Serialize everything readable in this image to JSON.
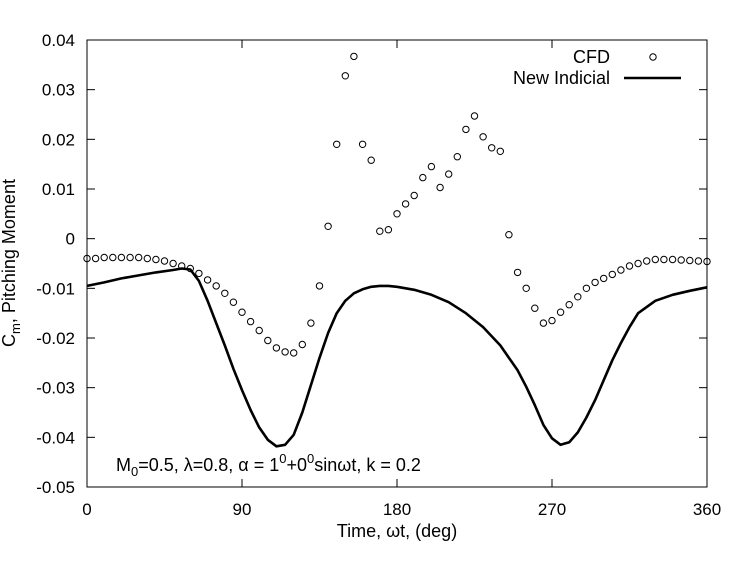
{
  "chart_data": {
    "type": "line",
    "title": "",
    "xlabel": "Time, ωt, (deg)",
    "ylabel_main": "C",
    "ylabel_sub": "m",
    "ylabel_rest": ", Pitching Moment",
    "xlim": [
      0,
      360
    ],
    "ylim": [
      -0.05,
      0.04
    ],
    "xticks": [
      0,
      90,
      180,
      270,
      360
    ],
    "xtick_labels": [
      "0",
      "90",
      "180",
      "270",
      "360"
    ],
    "yticks": [
      -0.05,
      -0.04,
      -0.03,
      -0.02,
      -0.01,
      0,
      0.01,
      0.02,
      0.03,
      0.04
    ],
    "ytick_labels": [
      "-0.05",
      "-0.04",
      "-0.03",
      "-0.02",
      "-0.01",
      "0",
      "0.01",
      "0.02",
      "0.03",
      "0.04"
    ],
    "grid": false,
    "legend_position": "top-right",
    "annotation": {
      "p1": "M",
      "p1_sub": "0",
      "p2": "=0.5, λ=0.8, α = 1",
      "p2_sup": "0",
      "p3": "+0",
      "p3_sup": "0",
      "p4": "sinωt, k = 0.2"
    },
    "series": [
      {
        "name": "CFD",
        "style": "markers",
        "marker": "open-circle",
        "color": "#000000",
        "x": [
          0,
          5,
          10,
          15,
          20,
          25,
          30,
          35,
          40,
          45,
          50,
          55,
          60,
          65,
          70,
          75,
          80,
          85,
          90,
          95,
          100,
          105,
          110,
          115,
          120,
          125,
          130,
          135,
          140,
          145,
          150,
          155,
          160,
          165,
          170,
          175,
          180,
          185,
          190,
          195,
          200,
          205,
          210,
          215,
          220,
          225,
          230,
          235,
          240,
          245,
          250,
          255,
          260,
          265,
          270,
          275,
          280,
          285,
          290,
          295,
          300,
          305,
          310,
          315,
          320,
          325,
          330,
          335,
          340,
          345,
          350,
          355,
          360
        ],
        "y": [
          -0.004,
          -0.004,
          -0.0038,
          -0.0038,
          -0.0038,
          -0.0038,
          -0.0038,
          -0.004,
          -0.0042,
          -0.0045,
          -0.005,
          -0.0055,
          -0.006,
          -0.007,
          -0.0083,
          -0.0095,
          -0.011,
          -0.0128,
          -0.0148,
          -0.0167,
          -0.0185,
          -0.0205,
          -0.022,
          -0.0228,
          -0.023,
          -0.0213,
          -0.017,
          -0.0095,
          0.0025,
          0.019,
          0.0328,
          0.0367,
          0.019,
          0.0158,
          0.0015,
          0.0018,
          0.005,
          0.007,
          0.0087,
          0.0123,
          0.0145,
          0.0103,
          0.013,
          0.0165,
          0.022,
          0.0247,
          0.0205,
          0.0183,
          0.0176,
          0.0008,
          -0.0068,
          -0.01,
          -0.014,
          -0.017,
          -0.0165,
          -0.0148,
          -0.0133,
          -0.0117,
          -0.01,
          -0.0088,
          -0.008,
          -0.0072,
          -0.0063,
          -0.0055,
          -0.005,
          -0.0045,
          -0.0042,
          -0.0042,
          -0.0042,
          -0.0043,
          -0.0044,
          -0.0045,
          -0.0046
        ]
      },
      {
        "name": "New Indicial",
        "style": "line",
        "color": "#000000",
        "x": [
          0,
          10,
          20,
          30,
          40,
          50,
          55,
          60,
          65,
          70,
          75,
          80,
          85,
          90,
          95,
          100,
          105,
          110,
          115,
          120,
          125,
          130,
          135,
          140,
          145,
          150,
          155,
          160,
          165,
          170,
          175,
          180,
          185,
          190,
          200,
          210,
          220,
          230,
          240,
          250,
          255,
          260,
          265,
          270,
          275,
          280,
          285,
          290,
          295,
          300,
          305,
          310,
          315,
          320,
          330,
          340,
          350,
          360
        ],
        "y": [
          -0.0095,
          -0.0088,
          -0.008,
          -0.0074,
          -0.0068,
          -0.0063,
          -0.006,
          -0.0062,
          -0.0085,
          -0.0125,
          -0.017,
          -0.0215,
          -0.0262,
          -0.0305,
          -0.0345,
          -0.038,
          -0.0405,
          -0.0418,
          -0.0415,
          -0.0395,
          -0.035,
          -0.0295,
          -0.024,
          -0.019,
          -0.015,
          -0.0125,
          -0.011,
          -0.0102,
          -0.0097,
          -0.0095,
          -0.0095,
          -0.0097,
          -0.01,
          -0.0103,
          -0.0113,
          -0.0128,
          -0.015,
          -0.0178,
          -0.0215,
          -0.0265,
          -0.0298,
          -0.0335,
          -0.0375,
          -0.0402,
          -0.0415,
          -0.041,
          -0.039,
          -0.036,
          -0.0325,
          -0.0285,
          -0.0245,
          -0.021,
          -0.0178,
          -0.015,
          -0.0125,
          -0.0113,
          -0.0105,
          -0.0098
        ]
      }
    ]
  }
}
